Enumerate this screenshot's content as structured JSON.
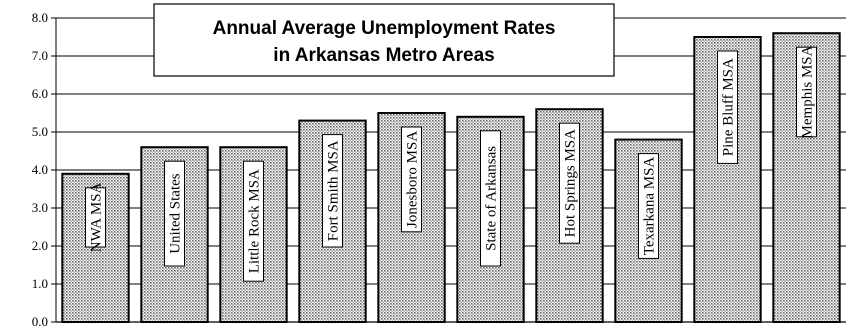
{
  "chart_data": {
    "type": "bar",
    "title": "Annual Average Unemployment Rates in Arkansas Metro Areas",
    "title_lines": [
      "Annual Average Unemployment Rates",
      "in Arkansas Metro Areas"
    ],
    "categories": [
      "NWA MSA",
      "United States",
      "Little Rock MSA",
      "Fort Smith MSA",
      "Jonesboro MSA",
      "State of Arkansas",
      "Hot Springs MSA",
      "Texarkana MSA",
      "Pine Bluff MSA",
      "Memphis MSA"
    ],
    "values": [
      3.9,
      4.6,
      4.6,
      5.3,
      5.5,
      5.4,
      5.6,
      4.8,
      7.5,
      7.6
    ],
    "ylim": [
      0,
      8
    ],
    "yticks": [
      "0.0",
      "1.0",
      "2.0",
      "3.0",
      "4.0",
      "5.0",
      "6.0",
      "7.0",
      "8.0"
    ],
    "grid": true,
    "legend": "none",
    "xlabel": "",
    "ylabel": "",
    "bar_fill": "dotted-gray",
    "colors": {
      "bar_border": "#000000",
      "grid": "#000000",
      "background": "#ffffff"
    }
  }
}
